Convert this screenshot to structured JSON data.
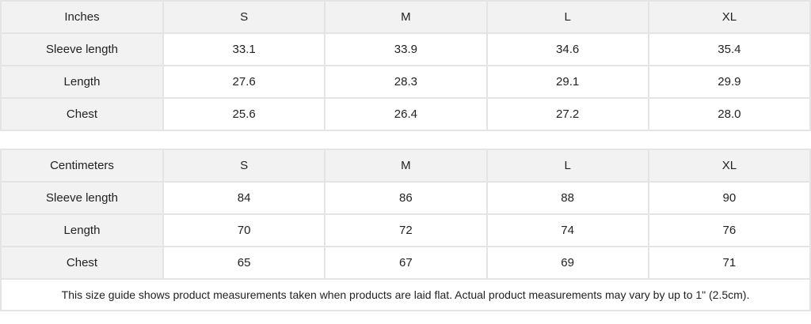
{
  "tables": [
    {
      "unit": "Inches",
      "sizes": [
        "S",
        "M",
        "L",
        "XL"
      ],
      "rows": [
        {
          "label": "Sleeve length",
          "values": [
            "33.1",
            "33.9",
            "34.6",
            "35.4"
          ]
        },
        {
          "label": "Length",
          "values": [
            "27.6",
            "28.3",
            "29.1",
            "29.9"
          ]
        },
        {
          "label": "Chest",
          "values": [
            "25.6",
            "26.4",
            "27.2",
            "28.0"
          ]
        }
      ]
    },
    {
      "unit": "Centimeters",
      "sizes": [
        "S",
        "M",
        "L",
        "XL"
      ],
      "rows": [
        {
          "label": "Sleeve length",
          "values": [
            "84",
            "86",
            "88",
            "90"
          ]
        },
        {
          "label": "Length",
          "values": [
            "70",
            "72",
            "74",
            "76"
          ]
        },
        {
          "label": "Chest",
          "values": [
            "65",
            "67",
            "69",
            "71"
          ]
        }
      ]
    }
  ],
  "footnote": "This size guide shows product measurements taken when products are laid flat.  Actual product measurements may vary by up to 1\" (2.5cm)."
}
